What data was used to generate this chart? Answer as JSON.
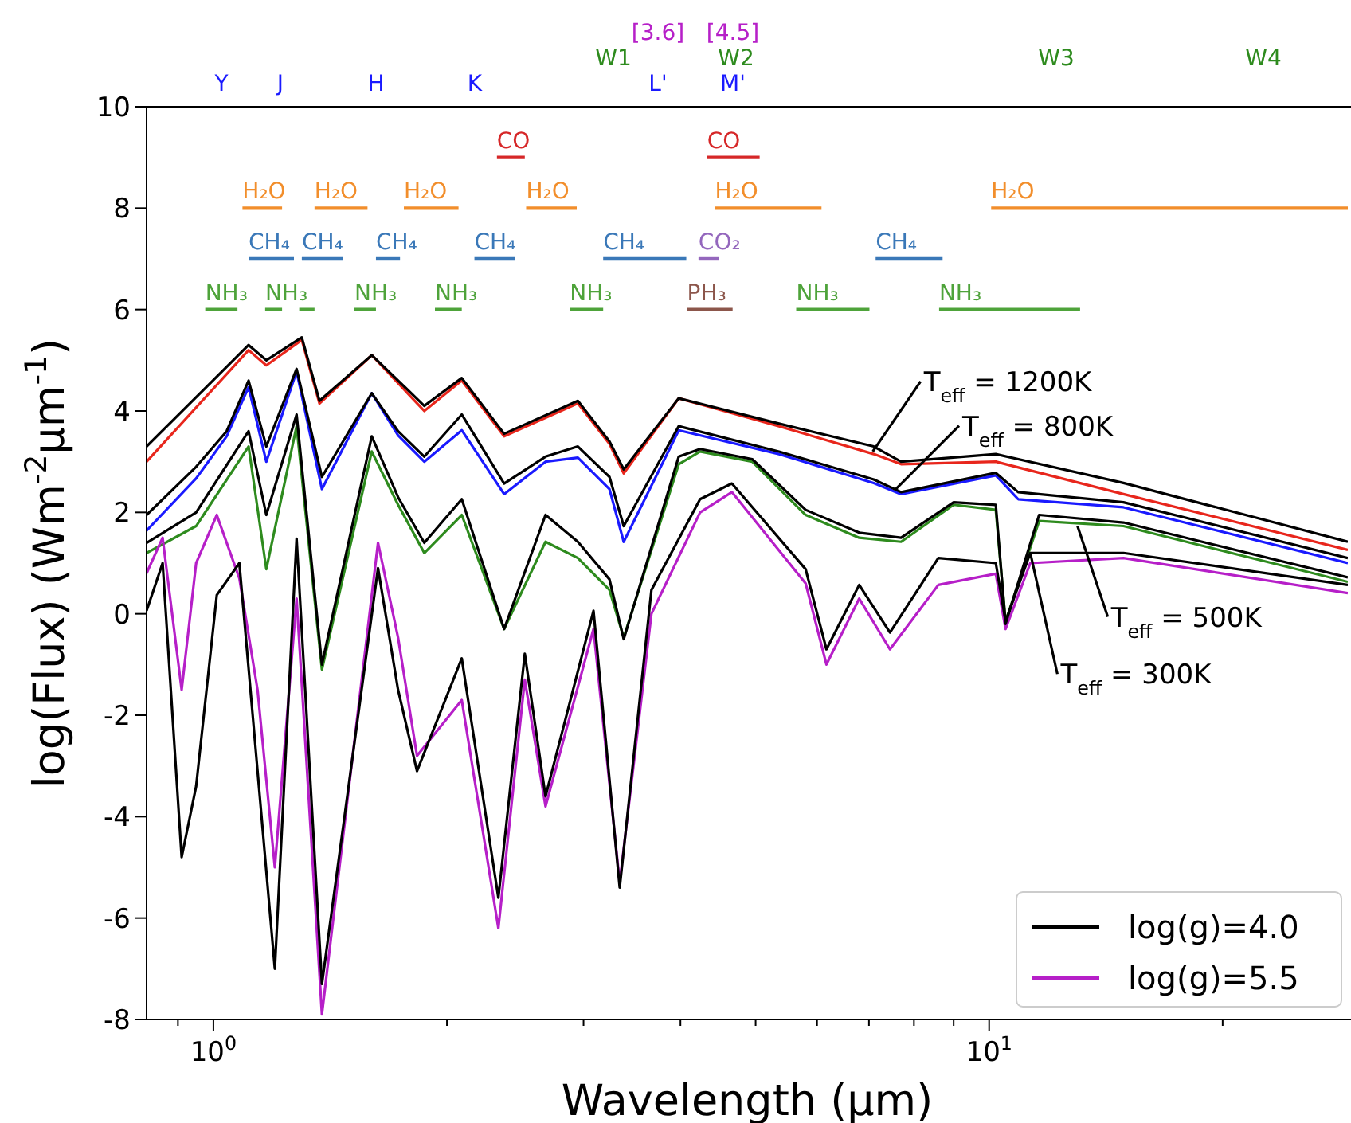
{
  "chart_data": {
    "type": "line",
    "xlabel": "Wavelength (μm)",
    "ylabel": "log(Flux) (Wm$^{-2}$μm$^{-1}$)",
    "log": "x",
    "xlim": [
      0.82,
      29
    ],
    "ylim": [
      -8,
      10
    ],
    "xticks": [
      {
        "value": 0.9,
        "label": null
      },
      {
        "value": 1,
        "label": "10$^{0}$"
      },
      {
        "value": 2,
        "label": null
      },
      {
        "value": 3,
        "label": null
      },
      {
        "value": 4,
        "label": null
      },
      {
        "value": 5,
        "label": null
      },
      {
        "value": 6,
        "label": null
      },
      {
        "value": 7,
        "label": null
      },
      {
        "value": 8,
        "label": null
      },
      {
        "value": 9,
        "label": null
      },
      {
        "value": 10,
        "label": "10$^{1}$"
      },
      {
        "value": 20,
        "label": null
      }
    ],
    "yticks": [
      -8,
      -6,
      -4,
      -2,
      0,
      2,
      4,
      6,
      8,
      10
    ],
    "legend": "bottom right",
    "series": [
      {
        "color": "#e8261c",
        "x": [
          0.82,
          1.11,
          1.17,
          1.3,
          1.37,
          1.6,
          1.87,
          2.09,
          2.37,
          2.95,
          3.24,
          3.38,
          3.98,
          5.36,
          7.1,
          7.7,
          10.2,
          14.9,
          29
        ],
        "values": [
          3.0,
          5.2,
          4.9,
          5.4,
          4.15,
          5.1,
          4.0,
          4.6,
          3.5,
          4.15,
          3.35,
          2.77,
          4.25,
          3.7,
          3.15,
          2.95,
          3.0,
          2.36,
          1.26
        ]
      },
      {
        "color": "#1a1aff",
        "x": [
          0.82,
          0.95,
          1.04,
          1.11,
          1.17,
          1.28,
          1.38,
          1.6,
          1.73,
          1.87,
          2.09,
          2.37,
          2.68,
          2.95,
          3.24,
          3.38,
          3.98,
          5.36,
          7.1,
          7.7,
          10.2,
          10.9,
          14.9,
          29
        ],
        "values": [
          1.64,
          2.67,
          3.5,
          4.47,
          3.0,
          4.78,
          2.46,
          4.35,
          3.52,
          3.0,
          3.62,
          2.36,
          3.0,
          3.08,
          2.46,
          1.42,
          3.62,
          3.15,
          2.58,
          2.36,
          2.73,
          2.26,
          2.1,
          1.0
        ]
      },
      {
        "color": "#2e8b1e",
        "x": [
          0.82,
          0.95,
          1.11,
          1.17,
          1.28,
          1.38,
          1.6,
          1.73,
          1.87,
          2.09,
          2.37,
          2.68,
          2.95,
          3.24,
          3.38,
          3.98,
          4.24,
          4.95,
          5.8,
          6.8,
          7.7,
          9.0,
          10.2,
          10.5,
          11.6,
          14.9,
          29
        ],
        "values": [
          1.2,
          1.73,
          3.3,
          0.88,
          3.7,
          -1.1,
          3.2,
          2.15,
          1.2,
          1.95,
          -0.3,
          1.42,
          1.1,
          0.47,
          -0.47,
          2.95,
          3.2,
          3.0,
          1.95,
          1.5,
          1.42,
          2.15,
          2.05,
          -0.15,
          1.83,
          1.73,
          0.63
        ]
      },
      {
        "name": "log(g)=5.5",
        "color": "#b61fc8",
        "x": [
          0.82,
          0.86,
          0.91,
          0.95,
          1.01,
          1.08,
          1.14,
          1.2,
          1.28,
          1.38,
          1.63,
          1.73,
          1.83,
          2.09,
          2.33,
          2.52,
          2.68,
          3.09,
          3.34,
          3.67,
          4.24,
          4.66,
          5.8,
          6.17,
          6.8,
          7.45,
          8.6,
          10.2,
          10.5,
          11.3,
          14.9,
          29
        ],
        "values": [
          0.8,
          1.5,
          -1.5,
          1.0,
          1.95,
          0.7,
          -1.5,
          -5.0,
          0.3,
          -7.9,
          1.4,
          -0.47,
          -2.8,
          -1.7,
          -6.2,
          -1.3,
          -3.8,
          -0.3,
          -5.3,
          0.0,
          2.0,
          2.4,
          0.6,
          -1.0,
          0.3,
          -0.7,
          0.57,
          0.79,
          -0.3,
          1.0,
          1.1,
          0.41
        ]
      },
      {
        "name": "log(g)=4.0",
        "color": "#000000",
        "x": [
          0.82,
          1.11,
          1.17,
          1.3,
          1.37,
          1.6,
          1.87,
          2.09,
          2.37,
          2.95,
          3.24,
          3.38,
          3.98,
          5.36,
          7.1,
          7.7,
          10.2,
          14.9,
          29
        ],
        "values": [
          3.3,
          5.3,
          5.0,
          5.45,
          4.2,
          5.1,
          4.1,
          4.65,
          3.55,
          4.2,
          3.4,
          2.85,
          4.25,
          3.75,
          3.3,
          3.0,
          3.15,
          2.58,
          1.42
        ]
      },
      {
        "color": "#000000",
        "x": [
          0.82,
          0.95,
          1.04,
          1.11,
          1.17,
          1.28,
          1.38,
          1.6,
          1.73,
          1.87,
          2.09,
          2.37,
          2.68,
          2.95,
          3.24,
          3.38,
          3.98,
          5.36,
          7.1,
          7.7,
          10.2,
          10.9,
          14.9,
          29
        ],
        "values": [
          1.95,
          2.9,
          3.6,
          4.6,
          3.3,
          4.83,
          2.7,
          4.35,
          3.6,
          3.1,
          3.93,
          2.57,
          3.1,
          3.3,
          2.7,
          1.73,
          3.7,
          3.2,
          2.65,
          2.4,
          2.78,
          2.4,
          2.2,
          1.1
        ]
      },
      {
        "color": "#000000",
        "x": [
          0.82,
          0.95,
          1.11,
          1.17,
          1.28,
          1.38,
          1.6,
          1.73,
          1.87,
          2.09,
          2.37,
          2.68,
          2.95,
          3.24,
          3.38,
          3.98,
          4.24,
          4.95,
          5.8,
          6.8,
          7.7,
          9.0,
          10.2,
          10.5,
          11.6,
          14.9,
          29
        ],
        "values": [
          1.4,
          2.0,
          3.6,
          1.95,
          3.93,
          -1.0,
          3.5,
          2.3,
          1.4,
          2.26,
          -0.3,
          1.95,
          1.42,
          0.68,
          -0.5,
          3.1,
          3.25,
          3.05,
          2.05,
          1.6,
          1.5,
          2.2,
          2.15,
          -0.2,
          1.95,
          1.8,
          0.72
        ]
      },
      {
        "color": "#000000",
        "x": [
          0.82,
          0.86,
          0.91,
          0.95,
          1.01,
          1.08,
          1.14,
          1.2,
          1.28,
          1.38,
          1.63,
          1.73,
          1.83,
          2.09,
          2.33,
          2.52,
          2.68,
          3.09,
          3.34,
          3.67,
          4.24,
          4.66,
          5.8,
          6.17,
          6.8,
          7.45,
          8.6,
          10.2,
          10.5,
          11.3,
          14.9,
          29
        ],
        "values": [
          0.06,
          1.0,
          -4.8,
          -3.4,
          0.37,
          1.0,
          -3.1,
          -7.0,
          1.48,
          -7.3,
          0.9,
          -1.5,
          -3.1,
          -0.88,
          -5.6,
          -0.79,
          -3.6,
          0.06,
          -5.4,
          0.47,
          2.26,
          2.57,
          0.88,
          -0.7,
          0.57,
          -0.37,
          1.1,
          1.0,
          -0.15,
          1.2,
          1.2,
          0.57
        ]
      },
      {
        "name": "CO",
        "color": "#d62728",
        "x": [
          2.32,
          2.52
        ],
        "values": [
          9,
          9
        ]
      },
      {
        "name": "CO",
        "color": "#d62728",
        "x": [
          4.33,
          5.06
        ],
        "values": [
          9,
          9
        ]
      },
      {
        "name": "H₂O",
        "color": "#f28e2b",
        "x": [
          1.09,
          1.226
        ],
        "values": [
          8,
          8
        ]
      },
      {
        "name": "H₂O",
        "color": "#f28e2b",
        "x": [
          1.35,
          1.58
        ],
        "values": [
          8,
          8
        ]
      },
      {
        "name": "H₂O",
        "color": "#f28e2b",
        "x": [
          1.76,
          2.07
        ],
        "values": [
          8,
          8
        ]
      },
      {
        "name": "H₂O",
        "color": "#f28e2b",
        "x": [
          2.53,
          2.94
        ],
        "values": [
          8,
          8
        ]
      },
      {
        "name": "H₂O",
        "color": "#f28e2b",
        "x": [
          4.43,
          6.08
        ],
        "values": [
          8,
          8
        ]
      },
      {
        "name": "H₂O",
        "color": "#f28e2b",
        "x": [
          10.06,
          29
        ],
        "values": [
          8,
          8
        ]
      },
      {
        "name": "CH₄",
        "color": "#3a78b8",
        "x": [
          1.11,
          1.27
        ],
        "values": [
          7,
          7
        ]
      },
      {
        "name": "CH₄",
        "color": "#3a78b8",
        "x": [
          1.3,
          1.47
        ],
        "values": [
          7,
          7
        ]
      },
      {
        "name": "CH₄",
        "color": "#3a78b8",
        "x": [
          1.62,
          1.74
        ],
        "values": [
          7,
          7
        ]
      },
      {
        "name": "CH₄",
        "color": "#3a78b8",
        "x": [
          2.17,
          2.45
        ],
        "values": [
          7,
          7
        ]
      },
      {
        "name": "CH₄",
        "color": "#3a78b8",
        "x": [
          3.18,
          4.07
        ],
        "values": [
          7,
          7
        ]
      },
      {
        "name": "CH₄",
        "color": "#3a78b8",
        "x": [
          7.14,
          8.71
        ],
        "values": [
          7,
          7
        ]
      },
      {
        "name": "CO₂",
        "color": "#9467bd",
        "x": [
          4.22,
          4.48
        ],
        "values": [
          7,
          7
        ]
      },
      {
        "name": "NH₃",
        "color": "#4ea33a",
        "x": [
          0.976,
          1.074
        ],
        "values": [
          6,
          6
        ]
      },
      {
        "name": "NH₃",
        "color": "#4ea33a",
        "x": [
          1.166,
          1.226
        ],
        "values": [
          6,
          6
        ]
      },
      {
        "color": "#4ea33a",
        "x": [
          1.29,
          1.35
        ],
        "values": [
          6,
          6
        ]
      },
      {
        "name": "NH₃",
        "color": "#4ea33a",
        "x": [
          1.52,
          1.62
        ],
        "values": [
          6,
          6
        ]
      },
      {
        "name": "NH₃",
        "color": "#4ea33a",
        "x": [
          1.93,
          2.09
        ],
        "values": [
          6,
          6
        ]
      },
      {
        "name": "NH₃",
        "color": "#4ea33a",
        "x": [
          2.88,
          3.18
        ],
        "values": [
          6,
          6
        ]
      },
      {
        "name": "NH₃",
        "color": "#4ea33a",
        "x": [
          5.64,
          7.01
        ],
        "values": [
          6,
          6
        ]
      },
      {
        "name": "NH₃",
        "color": "#4ea33a",
        "x": [
          8.62,
          13.1
        ],
        "values": [
          6,
          6
        ]
      },
      {
        "name": "PH₃",
        "color": "#8c564b",
        "x": [
          4.08,
          4.67
        ],
        "values": [
          6,
          6
        ]
      }
    ],
    "annotations": [
      "Y",
      "J",
      "H",
      "K",
      "L'",
      "M'",
      "W1",
      "W2",
      "W3",
      "W4",
      "[3.6]",
      "[4.5]",
      {
        "text": "T$_{eff}$ = 1200K",
        "x": 7.08,
        "y": 3.2
      },
      {
        "text": "T$_{eff}$ = 800K",
        "x": 7.57,
        "y": 2.45
      },
      {
        "text": "T$_{eff}$ = 500K",
        "x": 13.0,
        "y": 1.73
      },
      {
        "text": "T$_{eff}$ = 300K",
        "x": 11.3,
        "y": 1.2
      }
    ]
  }
}
